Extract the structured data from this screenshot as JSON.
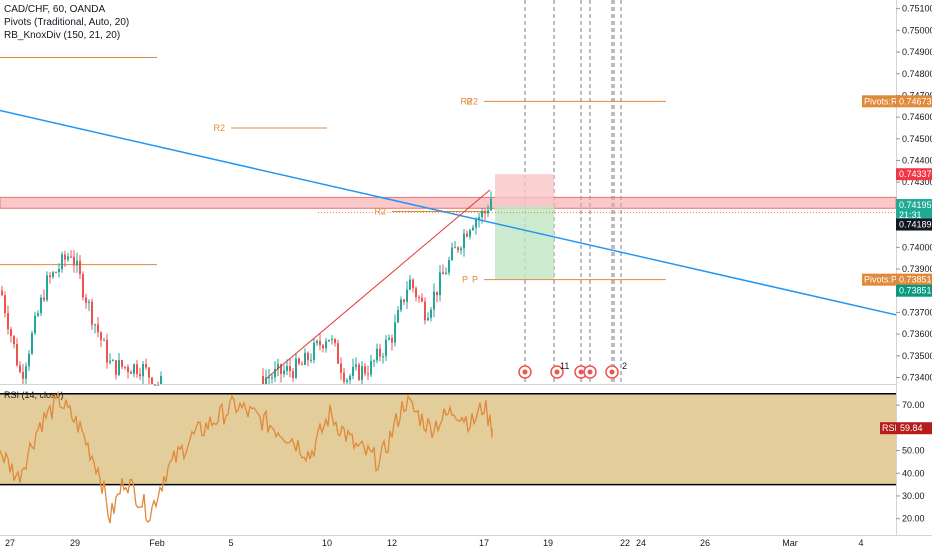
{
  "legend": {
    "symbol": "CAD/CHF, 60, OANDA",
    "indicator1": "Pivots (Traditional, Auto, 20)",
    "indicator2": "RB_KnoxDiv (150, 21, 20)",
    "indicator3": "RSI (14, close)"
  },
  "colors": {
    "candle_up": "#26a69a",
    "candle_down": "#ef5350",
    "pivot": "#e0893a",
    "trendline": "#2196f3",
    "resistance_zone": "#f7a3a3",
    "rsi_line": "#e0893a",
    "rsi_band": "#dcc081"
  },
  "chart_data": [
    {
      "type": "candlestick",
      "title": "CAD/CHF, 60, OANDA",
      "y_ticks": [
        0.751,
        0.75,
        0.749,
        0.748,
        0.747,
        0.746,
        0.745,
        0.744,
        0.743,
        0.742,
        0.741,
        0.74,
        0.739,
        0.738,
        0.737,
        0.736,
        0.735,
        0.734
      ],
      "y_range": [
        0.7337,
        0.7514
      ],
      "x_ticks": [
        "27",
        "29",
        "Feb",
        "5",
        "10",
        "12",
        "17",
        "19",
        "22",
        "24",
        "26",
        "Mar",
        "4"
      ],
      "price_labels": [
        {
          "text": "Pivots:R2",
          "value": "0.74673",
          "price": 0.74673
        },
        {
          "text": "",
          "value": "0.74337",
          "price": 0.74337
        },
        {
          "text": "",
          "value": "0.74195",
          "price": 0.74195
        },
        {
          "text": "",
          "value": "21:31",
          "price": 0.7415
        },
        {
          "text": "",
          "value": "0.74189",
          "price": 0.74105
        },
        {
          "text": "Pivots:P",
          "value": "0.73851",
          "price": 0.73851
        },
        {
          "text": "",
          "value": "0.73851",
          "price": 0.738
        }
      ],
      "pivot_labels": [
        "R2",
        "R2",
        "R2",
        "P"
      ],
      "event_counts": [
        "11",
        "2"
      ],
      "resistance_zone": [
        0.7418,
        0.7423
      ],
      "long_position": {
        "entry": 0.7419,
        "stop": 0.74337,
        "target": 0.73851
      },
      "pivot_levels": [
        {
          "label": "",
          "price": 0.74875,
          "x": [
            "27",
            "Feb"
          ]
        },
        {
          "label": "",
          "price": 0.7392,
          "x": [
            "27",
            "Feb"
          ]
        },
        {
          "label": "R2",
          "price": 0.7455,
          "x": [
            "5",
            "10"
          ]
        },
        {
          "label": "R2",
          "price": 0.74165,
          "x": [
            "12",
            "17"
          ]
        },
        {
          "label": "R2",
          "price": 0.74673,
          "x": [
            "17",
            "22"
          ]
        },
        {
          "label": "P",
          "price": 0.73851,
          "x": [
            "17",
            "22"
          ]
        }
      ],
      "trendlines": [
        {
          "name": "descending",
          "from": {
            "x": "27",
            "price": 0.7462
          },
          "to": {
            "x": "Mar",
            "price": 0.738
          }
        },
        {
          "name": "ascending",
          "from": {
            "x": "5",
            "price": 0.7339
          },
          "to": {
            "x": "17",
            "price": 0.74265
          }
        }
      ]
    },
    {
      "type": "line",
      "title": "RSI (14, close)",
      "y_ticks": [
        70.0,
        60.0,
        50.0,
        40.0,
        30.0,
        20.0
      ],
      "y_range": [
        15,
        78
      ],
      "bands": [
        35,
        75
      ],
      "last_label": "RSI",
      "last_value": "59.84",
      "last": 59.84
    }
  ]
}
